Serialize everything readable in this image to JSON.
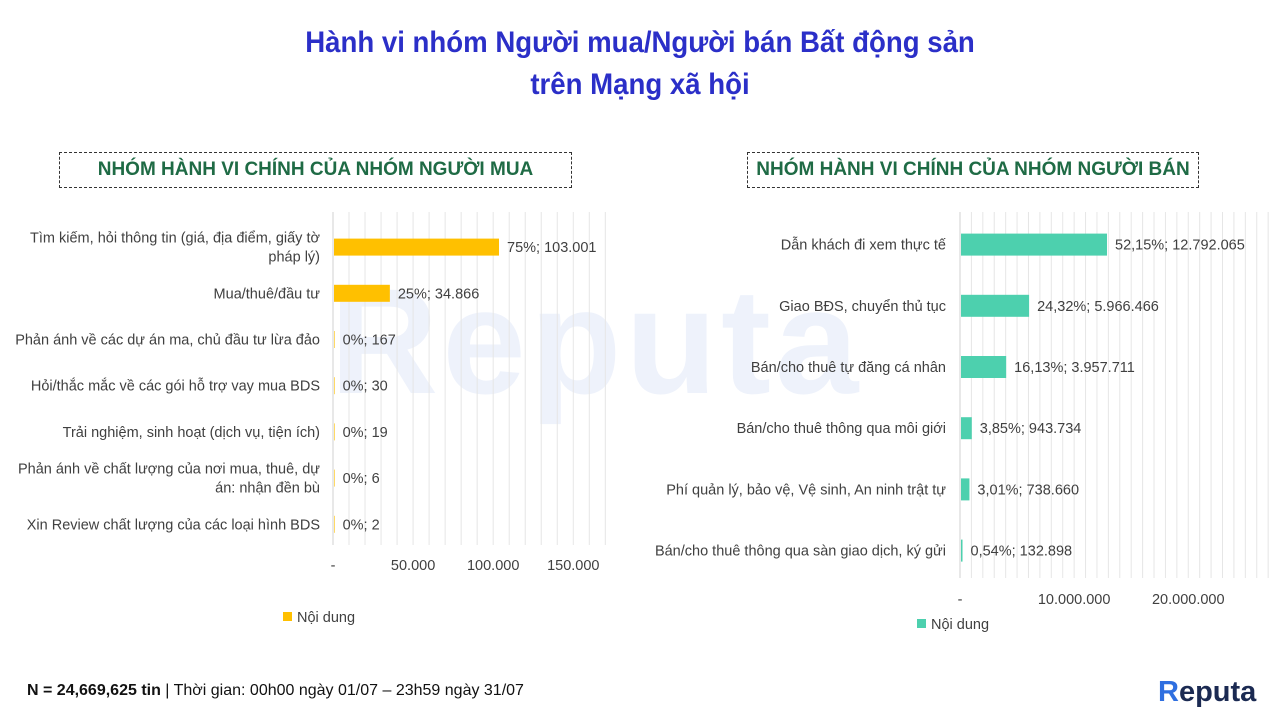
{
  "title_line1": "Hành vi nhóm Người mua/Người bán Bất động sản",
  "title_line2": "trên Mạng xã hội",
  "watermark": "Reputa",
  "footer": {
    "n_label": "N = 24,669,625 tin",
    "period": " | Thời gian: 00h00 ngày 01/07 – 23h59 ngày 31/07"
  },
  "logo": {
    "first": "R",
    "rest": "eputa"
  },
  "colors": {
    "buyer": "#FFC000",
    "seller": "#4DD0AE",
    "title": "#2B2FC8",
    "box_title": "#1F6B45"
  },
  "chart_data": [
    {
      "type": "bar",
      "orientation": "horizontal",
      "box_title": "NHÓM HÀNH VI CHÍNH CỦA NHÓM NGƯỜI MUA",
      "categories": [
        [
          "Tìm kiếm, hỏi thông tin (giá, địa điểm, giấy tờ",
          "pháp lý)"
        ],
        [
          "Mua/thuê/đầu tư"
        ],
        [
          "Phản ánh về các dự án ma, chủ đầu tư lừa đảo"
        ],
        [
          "Hỏi/thắc mắc về các gói hỗ trợ vay mua BDS"
        ],
        [
          "Trải nghiệm, sinh hoạt (dịch vụ, tiện ích)"
        ],
        [
          "Phản ánh về chất lượng của nơi mua, thuê, dự",
          "án: nhận đền bù"
        ],
        [
          "Xin Review chất lượng của các loại hình BDS"
        ]
      ],
      "values": [
        103001,
        34866,
        167,
        30,
        19,
        6,
        2
      ],
      "data_labels": [
        "75%;  103.001",
        "25%;  34.866",
        "0%;  167",
        "0%;  30",
        "0%;  19",
        "0%;  6",
        "0%;  2"
      ],
      "x_ticks": [
        0,
        50000,
        100000,
        150000
      ],
      "x_tick_labels": [
        "-",
        "50.000",
        "100.000",
        "150.000"
      ],
      "xlim": [
        0,
        170000
      ],
      "legend": "Nội dung",
      "legend_position": "bottom",
      "grid": true
    },
    {
      "type": "bar",
      "orientation": "horizontal",
      "box_title": "NHÓM HÀNH VI CHÍNH CỦA NHÓM NGƯỜI BÁN",
      "categories": [
        [
          "Dẫn khách đi xem thực tế"
        ],
        [
          "Giao BĐS, chuyển thủ tục"
        ],
        [
          "Bán/cho thuê tự đăng cá nhân"
        ],
        [
          "Bán/cho thuê thông qua môi giới"
        ],
        [
          "Phí quản lý, bảo vệ, Vệ sinh, An ninh trật tự"
        ],
        [
          "Bán/cho thuê thông qua sàn giao dịch, ký gửi"
        ]
      ],
      "values": [
        12792065,
        5966466,
        3957711,
        943734,
        738660,
        132898
      ],
      "data_labels": [
        "52,15%;  12.792.065",
        "24,32%;  5.966.466",
        "16,13%;  3.957.711",
        "3,85%;  943.734",
        "3,01%;  738.660",
        "0,54%;  132.898"
      ],
      "x_ticks": [
        0,
        10000000,
        20000000
      ],
      "x_tick_labels": [
        "-",
        "10.000.000",
        "20.000.000"
      ],
      "xlim": [
        0,
        27000000
      ],
      "legend": "Nội dung",
      "legend_position": "bottom",
      "grid": true
    }
  ]
}
